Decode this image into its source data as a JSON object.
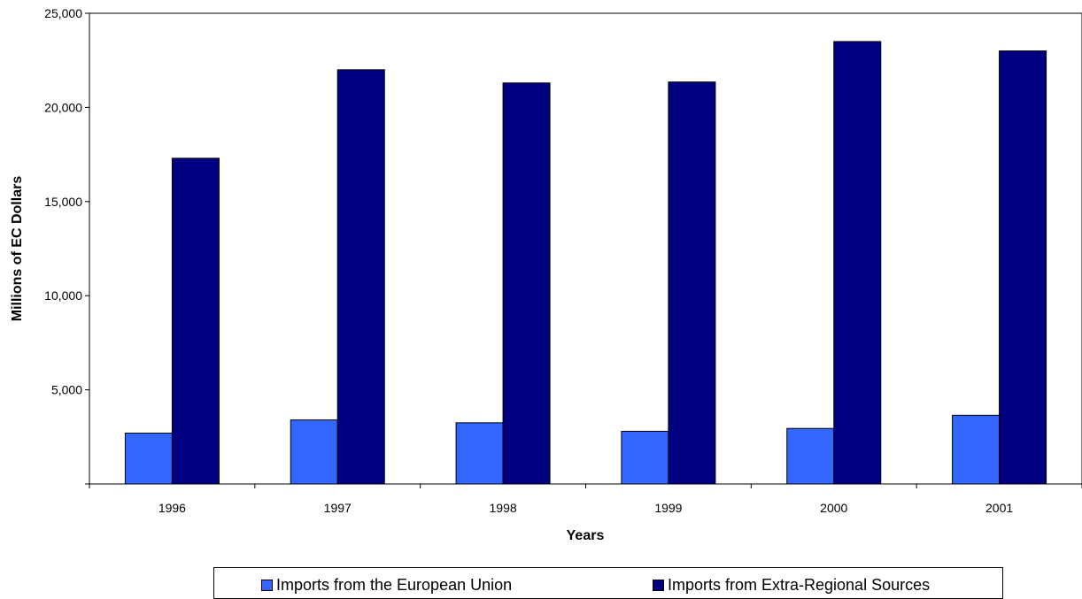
{
  "chart_data": {
    "type": "bar",
    "categories": [
      "1996",
      "1997",
      "1998",
      "1999",
      "2000",
      "2001"
    ],
    "series": [
      {
        "name": "Imports from the European Union",
        "color": "#3366ff",
        "values": [
          2700,
          3400,
          3250,
          2800,
          2950,
          3650
        ]
      },
      {
        "name": "Imports from Extra-Regional Sources",
        "color": "#000080",
        "values": [
          17300,
          22000,
          21300,
          21350,
          23500,
          23000
        ]
      }
    ],
    "title": "",
    "xlabel": "Years",
    "ylabel": "Millions of EC Dollars",
    "ylim": [
      0,
      25000
    ],
    "yticks": [
      5000,
      10000,
      15000,
      20000,
      25000
    ],
    "ytick_labels": [
      "5,000",
      "10,000",
      "15,000",
      "20,000",
      "25,000"
    ],
    "grid": false,
    "legend_position": "bottom"
  }
}
